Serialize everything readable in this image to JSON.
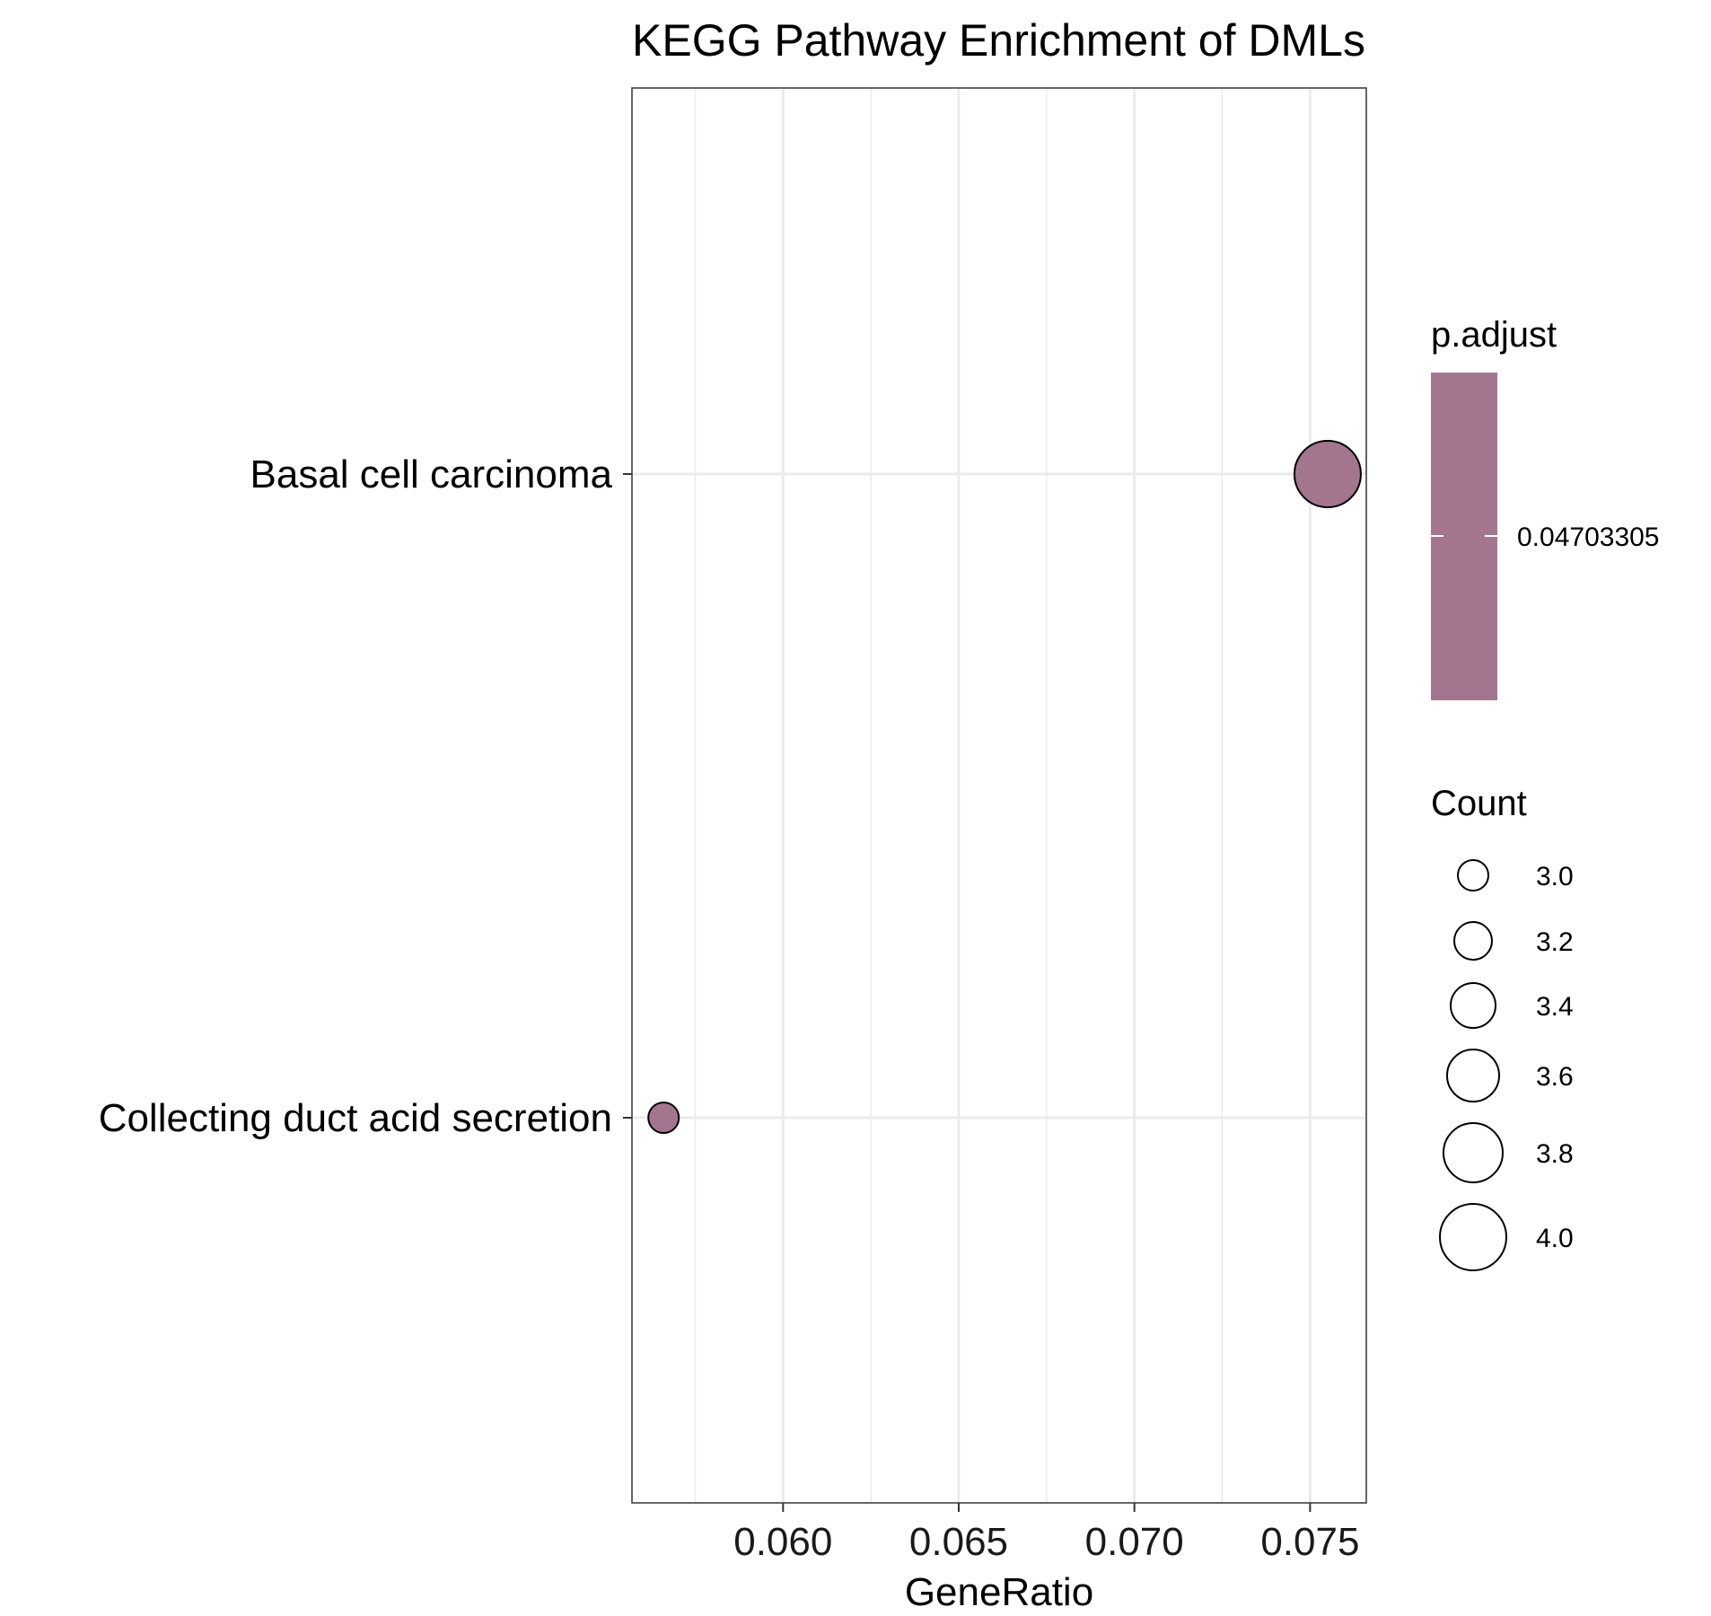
{
  "chart_data": {
    "type": "scatter",
    "title": "KEGG Pathway Enrichment of DMLs",
    "xlabel": "GeneRatio",
    "ylabel": "",
    "xlim": [
      0.0557,
      0.0766
    ],
    "x_ticks": [
      0.06,
      0.065,
      0.07,
      0.075
    ],
    "x_tick_labels": [
      "0.060",
      "0.065",
      "0.070",
      "0.075"
    ],
    "categories": [
      "Basal cell carcinoma",
      "Collecting duct acid secretion"
    ],
    "points": [
      {
        "category": "Basal cell carcinoma",
        "x": 0.0755,
        "count": 4,
        "p_adjust": 0.04703305
      },
      {
        "category": "Collecting duct acid secretion",
        "x": 0.0566,
        "count": 3,
        "p_adjust": 0.04703305
      }
    ],
    "grid": true,
    "colors": {
      "point_fill": "#a4758f",
      "gridline": "#ebebeb",
      "panel_border": "#333333"
    },
    "legend": {
      "placement": "right",
      "color_title": "p.adjust",
      "color_labels": [
        "0.04703305"
      ],
      "size_title": "Count",
      "size_values": [
        3.0,
        3.2,
        3.4,
        3.6,
        3.8,
        4.0
      ],
      "size_labels": [
        "3.0",
        "3.2",
        "3.4",
        "3.6",
        "3.8",
        "4.0"
      ]
    }
  }
}
